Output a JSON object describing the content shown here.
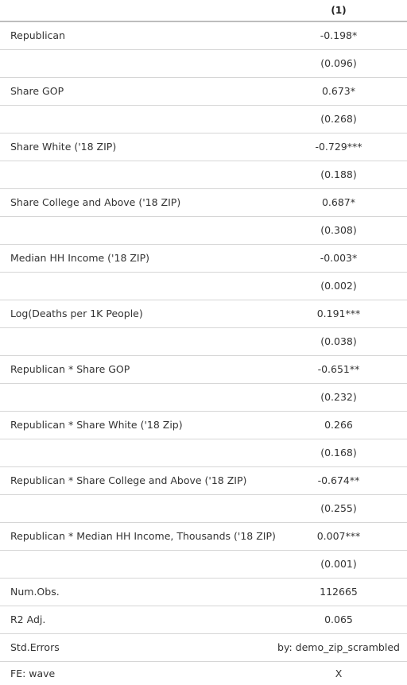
{
  "header": {
    "col1": "",
    "col2": "(1)"
  },
  "rows": [
    {
      "label": "Republican",
      "value": "-0.198*"
    },
    {
      "label": "",
      "value": "(0.096)"
    },
    {
      "label": "Share GOP",
      "value": "0.673*"
    },
    {
      "label": "",
      "value": "(0.268)"
    },
    {
      "label": "Share White ('18 ZIP)",
      "value": "-0.729***"
    },
    {
      "label": "",
      "value": "(0.188)"
    },
    {
      "label": "Share College and Above ('18 ZIP)",
      "value": "0.687*"
    },
    {
      "label": "",
      "value": "(0.308)"
    },
    {
      "label": "Median HH Income ('18 ZIP)",
      "value": "-0.003*"
    },
    {
      "label": "",
      "value": "(0.002)"
    },
    {
      "label": "Log(Deaths per 1K People)",
      "value": "0.191***"
    },
    {
      "label": "",
      "value": "(0.038)"
    },
    {
      "label": "Republican * Share GOP",
      "value": "-0.651**"
    },
    {
      "label": "",
      "value": "(0.232)"
    },
    {
      "label": "Republican * Share White ('18 Zip)",
      "value": "0.266"
    },
    {
      "label": "",
      "value": "(0.168)"
    },
    {
      "label": "Republican * Share College and Above ('18 ZIP)",
      "value": "-0.674**"
    },
    {
      "label": "",
      "value": "(0.255)"
    },
    {
      "label": "Republican * Median HH Income, Thousands ('18 ZIP)",
      "value": "0.007***"
    },
    {
      "label": "",
      "value": "(0.001)"
    },
    {
      "label": "Num.Obs.",
      "value": "112665"
    },
    {
      "label": "R2 Adj.",
      "value": "0.065"
    },
    {
      "label": "Std.Errors",
      "value": "by: demo_zip_scrambled"
    },
    {
      "label": "FE: wave",
      "value": "X"
    }
  ]
}
